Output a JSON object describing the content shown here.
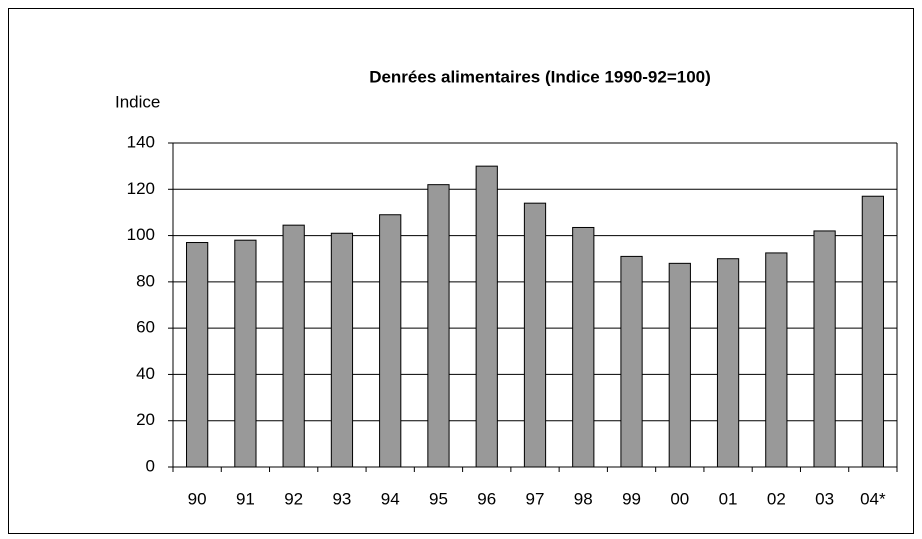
{
  "chart_data": {
    "type": "bar",
    "title": "Denrées alimentaires (Indice 1990-92=100)",
    "y_label": "Indice",
    "categories": [
      "90",
      "91",
      "92",
      "93",
      "94",
      "95",
      "96",
      "97",
      "98",
      "99",
      "00",
      "01",
      "02",
      "03",
      "04*"
    ],
    "values": [
      97,
      98,
      104.5,
      101,
      109,
      122,
      130,
      114,
      103.5,
      91,
      88,
      90,
      92.5,
      102,
      117
    ],
    "color": "#999999",
    "ylim": [
      0,
      140
    ],
    "yticks": [
      0,
      20,
      40,
      60,
      80,
      100,
      120,
      140
    ],
    "grid": true
  }
}
